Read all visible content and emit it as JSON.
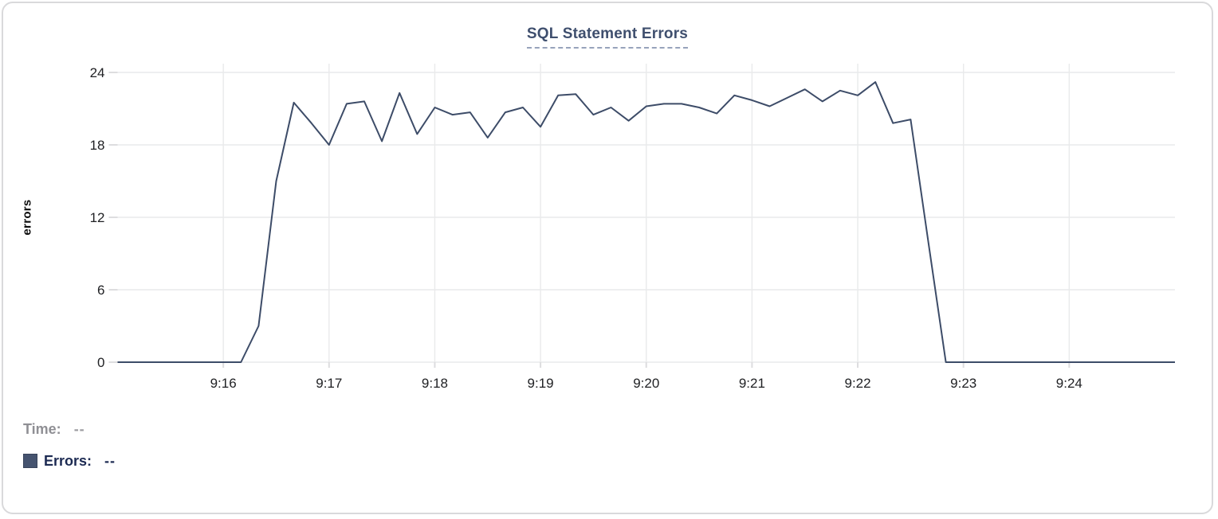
{
  "chart_data": {
    "type": "line",
    "title": "SQL Statement Errors",
    "xlabel": "",
    "ylabel": "errors",
    "x_start": "9:15:00",
    "x_end": "9:25:00",
    "interval_seconds": 10,
    "x_tick_labels": [
      "9:16",
      "9:17",
      "9:18",
      "9:19",
      "9:20",
      "9:21",
      "9:22",
      "9:23",
      "9:24"
    ],
    "y_ticks": [
      0,
      6,
      12,
      18,
      24
    ],
    "ylim": [
      0,
      24.7
    ],
    "grid": true,
    "legend_position": "bottom-left",
    "series": [
      {
        "name": "Errors",
        "color": "#3d4c68",
        "values": [
          0,
          0,
          0,
          0,
          0,
          0,
          0,
          0,
          3,
          15,
          21.5,
          19.8,
          18,
          21.4,
          21.6,
          18.3,
          22.3,
          18.9,
          21.1,
          20.5,
          20.7,
          18.6,
          20.7,
          21.1,
          19.5,
          22.1,
          22.2,
          20.5,
          21.1,
          20,
          21.2,
          21.4,
          21.4,
          21.1,
          20.6,
          22.1,
          21.7,
          21.2,
          21.9,
          22.6,
          21.6,
          22.5,
          22.1,
          23.2,
          19.8,
          20.1,
          10,
          0,
          0,
          0,
          0,
          0,
          0,
          0,
          0,
          0,
          0,
          0,
          0,
          0,
          0
        ]
      }
    ]
  },
  "legend": {
    "time_label": "Time:",
    "time_value": "--",
    "errors_label": "Errors:",
    "errors_value": "--",
    "swatch_color": "#45536f"
  },
  "colors": {
    "grid": "#e9eaeb",
    "tick": "#dddddf",
    "tick_label": "#202124",
    "line": "#3d4c68",
    "title": "#3f4f6e",
    "card_border": "#d9d9db"
  }
}
